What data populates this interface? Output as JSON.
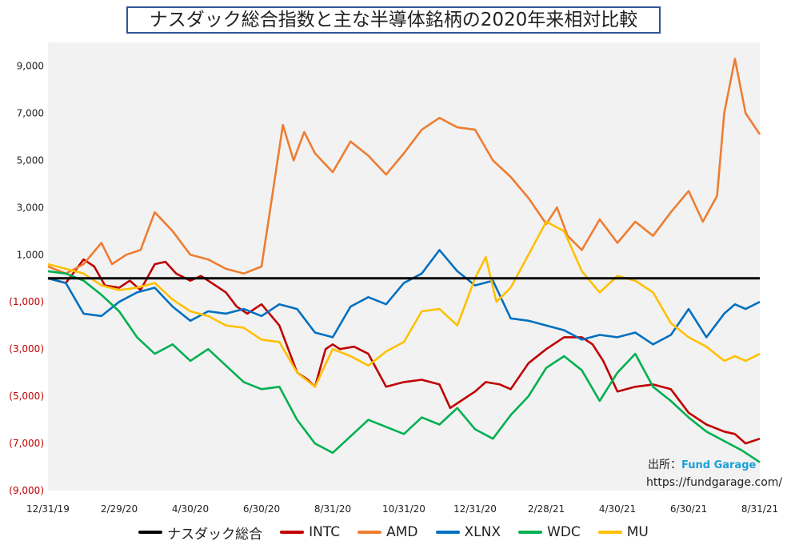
{
  "chart_data": {
    "type": "line",
    "title": "ナスダック総合指数と主な半導体銘柄の2020年来相対比較",
    "x_tick_labels": [
      "12/31/19",
      "2/29/20",
      "4/30/20",
      "6/30/20",
      "8/31/20",
      "10/31/20",
      "12/31/20",
      "2/28/21",
      "4/30/21",
      "6/30/21",
      "8/31/21"
    ],
    "y_tick_labels": [
      "9,000",
      "7,000",
      "5,000",
      "3,000",
      "1,000",
      "(1,000)",
      "(3,000)",
      "(5,000)",
      "(7,000)",
      "(9,000)"
    ],
    "y_tick_values": [
      9000,
      7000,
      5000,
      3000,
      1000,
      -1000,
      -3000,
      -5000,
      -7000,
      -9000
    ],
    "ylim": [
      -9000,
      10000
    ],
    "xlim": [
      0,
      20
    ],
    "grid": false,
    "legend_position": "bottom",
    "x_units_note": "x positions in months since 12/31/19",
    "series": [
      {
        "name": "ナスダック総合",
        "color": "#000000",
        "x": [
          0,
          20
        ],
        "y": [
          0,
          0
        ]
      },
      {
        "name": "INTC",
        "color": "#c00000",
        "x": [
          0,
          0.5,
          1,
          1.3,
          1.6,
          2,
          2.3,
          2.6,
          3,
          3.3,
          3.6,
          4,
          4.3,
          4.6,
          5,
          5.3,
          5.6,
          6,
          6.5,
          7,
          7.3,
          7.5,
          7.8,
          8,
          8.2,
          8.6,
          9,
          9.5,
          10,
          10.5,
          11,
          11.3,
          11.6,
          12,
          12.3,
          12.7,
          13,
          13.5,
          14,
          14.5,
          15,
          15.3,
          15.6,
          16,
          16.5,
          17,
          17.5,
          18,
          18.5,
          19,
          19.3,
          19.6,
          20
        ],
        "y": [
          0,
          -200,
          800,
          500,
          -300,
          -400,
          -100,
          -500,
          600,
          700,
          200,
          -100,
          100,
          -200,
          -600,
          -1200,
          -1500,
          -1100,
          -2000,
          -4000,
          -4300,
          -4600,
          -3000,
          -2800,
          -3000,
          -2900,
          -3200,
          -4600,
          -4400,
          -4300,
          -4500,
          -5500,
          -5200,
          -4800,
          -4400,
          -4500,
          -4700,
          -3600,
          -3000,
          -2500,
          -2500,
          -2800,
          -3500,
          -4800,
          -4600,
          -4500,
          -4700,
          -5700,
          -6200,
          -6500,
          -6600,
          -7000,
          -6800
        ]
      },
      {
        "name": "AMD",
        "color": "#ed7d31",
        "x": [
          0,
          0.5,
          1,
          1.5,
          1.8,
          2.2,
          2.6,
          3,
          3.5,
          4,
          4.5,
          5,
          5.5,
          6,
          6.3,
          6.6,
          6.9,
          7.2,
          7.5,
          8,
          8.5,
          9,
          9.5,
          10,
          10.5,
          11,
          11.5,
          12,
          12.5,
          13,
          13.5,
          14,
          14.3,
          14.6,
          15,
          15.5,
          16,
          16.5,
          17,
          17.5,
          18,
          18.4,
          18.8,
          19,
          19.3,
          19.6,
          20
        ],
        "y": [
          500,
          200,
          600,
          1500,
          600,
          1000,
          1200,
          2800,
          2000,
          1000,
          800,
          400,
          200,
          500,
          3500,
          6500,
          5000,
          6200,
          5300,
          4500,
          5800,
          5200,
          4400,
          5300,
          6300,
          6800,
          6400,
          6300,
          5000,
          4300,
          3400,
          2300,
          3000,
          1800,
          1200,
          2500,
          1500,
          2400,
          1800,
          2800,
          3700,
          2400,
          3500,
          7000,
          9300,
          7000,
          6100
        ]
      },
      {
        "name": "XLNX",
        "color": "#0070c0",
        "x": [
          0,
          0.5,
          1,
          1.5,
          2,
          2.5,
          3,
          3.5,
          4,
          4.5,
          5,
          5.5,
          6,
          6.5,
          7,
          7.5,
          8,
          8.5,
          9,
          9.5,
          10,
          10.5,
          11,
          11.5,
          12,
          12.5,
          13,
          13.5,
          14,
          14.5,
          15,
          15.5,
          16,
          16.5,
          17,
          17.5,
          18,
          18.5,
          19,
          19.3,
          19.6,
          20
        ],
        "y": [
          0,
          -200,
          -1500,
          -1600,
          -1000,
          -600,
          -400,
          -1200,
          -1800,
          -1400,
          -1500,
          -1300,
          -1600,
          -1100,
          -1300,
          -2300,
          -2500,
          -1200,
          -800,
          -1100,
          -200,
          200,
          1200,
          300,
          -300,
          -100,
          -1700,
          -1800,
          -2000,
          -2200,
          -2600,
          -2400,
          -2500,
          -2300,
          -2800,
          -2400,
          -1300,
          -2500,
          -1500,
          -1100,
          -1300,
          -1000
        ]
      },
      {
        "name": "WDC",
        "color": "#00b050",
        "x": [
          0,
          0.5,
          1,
          1.5,
          2,
          2.5,
          3,
          3.5,
          4,
          4.5,
          5,
          5.5,
          6,
          6.5,
          7,
          7.5,
          8,
          8.5,
          9,
          9.5,
          10,
          10.5,
          11,
          11.5,
          12,
          12.5,
          13,
          13.5,
          14,
          14.5,
          15,
          15.5,
          16,
          16.5,
          17,
          17.5,
          18,
          18.5,
          19,
          19.5,
          20
        ],
        "y": [
          300,
          200,
          -100,
          -700,
          -1400,
          -2500,
          -3200,
          -2800,
          -3500,
          -3000,
          -3700,
          -4400,
          -4700,
          -4600,
          -6000,
          -7000,
          -7400,
          -6700,
          -6000,
          -6300,
          -6600,
          -5900,
          -6200,
          -5500,
          -6400,
          -6800,
          -5800,
          -5000,
          -3800,
          -3300,
          -3900,
          -5200,
          -4000,
          -3200,
          -4600,
          -5200,
          -5900,
          -6500,
          -6900,
          -7300,
          -7800
        ]
      },
      {
        "name": "MU",
        "color": "#ffc000",
        "x": [
          0,
          0.5,
          1,
          1.5,
          2,
          2.5,
          3,
          3.5,
          4,
          4.5,
          5,
          5.5,
          6,
          6.5,
          7,
          7.5,
          8,
          8.5,
          9,
          9.5,
          10,
          10.5,
          11,
          11.5,
          12,
          12.3,
          12.6,
          13,
          13.5,
          14,
          14.5,
          15,
          15.5,
          16,
          16.5,
          17,
          17.5,
          18,
          18.5,
          19,
          19.3,
          19.6,
          20
        ],
        "y": [
          600,
          400,
          200,
          -300,
          -500,
          -400,
          -200,
          -900,
          -1400,
          -1600,
          -2000,
          -2100,
          -2600,
          -2700,
          -4000,
          -4600,
          -3000,
          -3300,
          -3700,
          -3100,
          -2700,
          -1400,
          -1300,
          -2000,
          0,
          900,
          -1000,
          -400,
          1000,
          2400,
          2000,
          300,
          -600,
          100,
          -100,
          -600,
          -1900,
          -2500,
          -2900,
          -3500,
          -3300,
          -3500,
          -3200
        ]
      }
    ]
  },
  "source": {
    "label": "出所：",
    "name": "Fund Garage",
    "url": "https://fundgarage.com/"
  }
}
